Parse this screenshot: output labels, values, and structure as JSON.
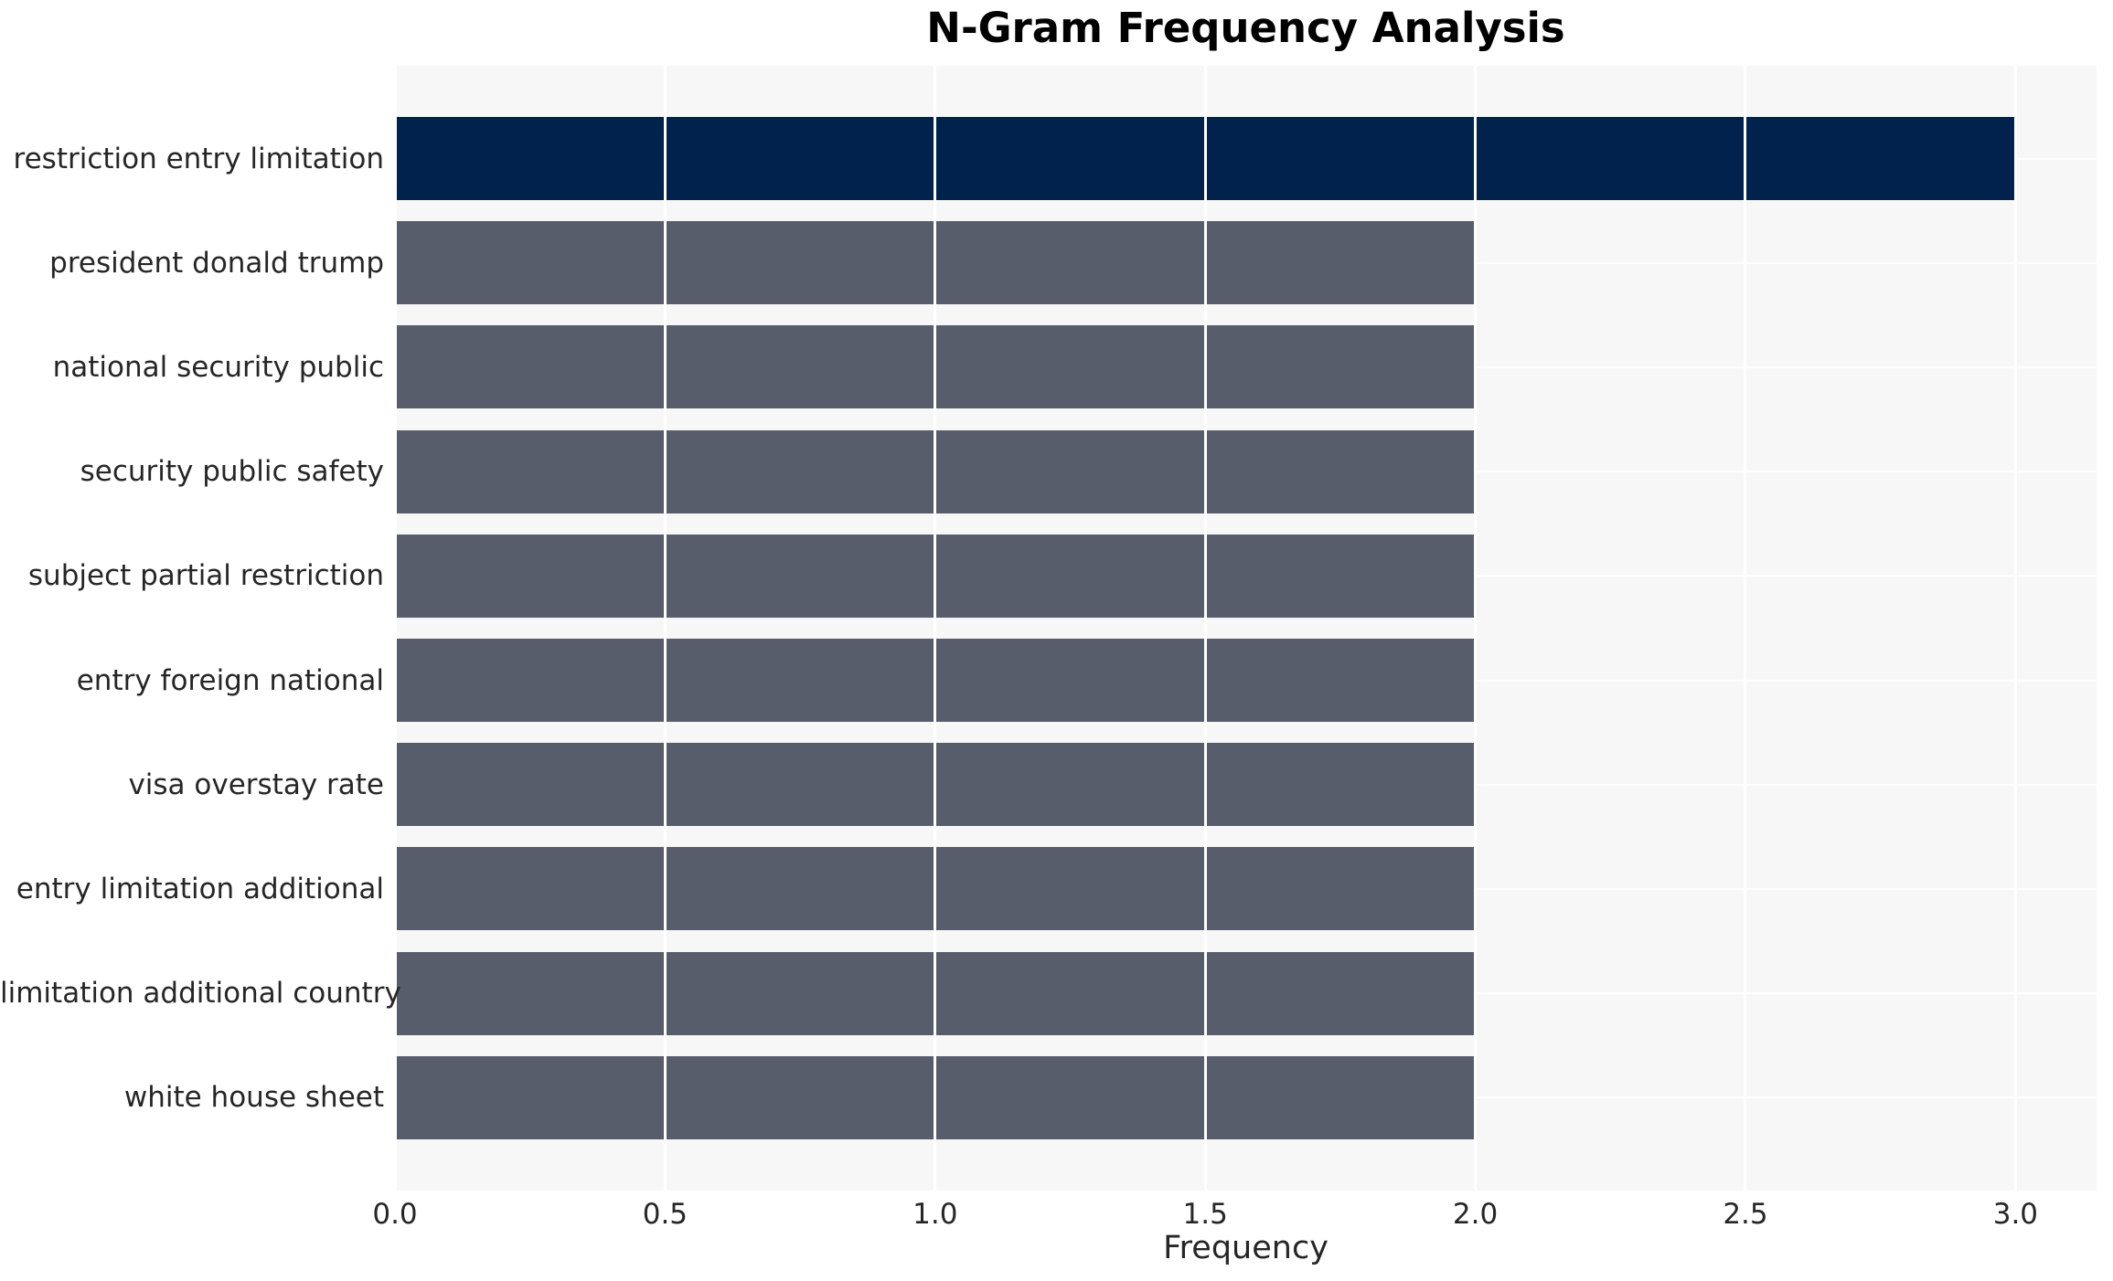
{
  "chart_data": {
    "type": "bar",
    "orientation": "horizontal",
    "title": "N-Gram Frequency Analysis",
    "xlabel": "Frequency",
    "ylabel": "",
    "categories": [
      "restriction entry limitation",
      "president donald trump",
      "national security public",
      "security public safety",
      "subject partial restriction",
      "entry foreign national",
      "visa overstay rate",
      "entry limitation additional",
      "limitation additional country",
      "white house sheet"
    ],
    "values": [
      3,
      2,
      2,
      2,
      2,
      2,
      2,
      2,
      2,
      2
    ],
    "x_tick_labels": [
      "0.0",
      "0.5",
      "1.0",
      "1.5",
      "2.0",
      "2.5",
      "3.0"
    ],
    "x_tick_values": [
      0,
      0.5,
      1.0,
      1.5,
      2.0,
      2.5,
      3.0
    ],
    "xlim": [
      0,
      3.15
    ],
    "grid": "on",
    "legend": "none",
    "colors": {
      "highlight_bar": "#02224e",
      "default_bar": "#575d6b",
      "plot_background": "#f7f7f8",
      "figure_background": "#ffffff",
      "gridline": "#ffffff",
      "tick_text": "#262626",
      "title_text": "#000000"
    }
  }
}
